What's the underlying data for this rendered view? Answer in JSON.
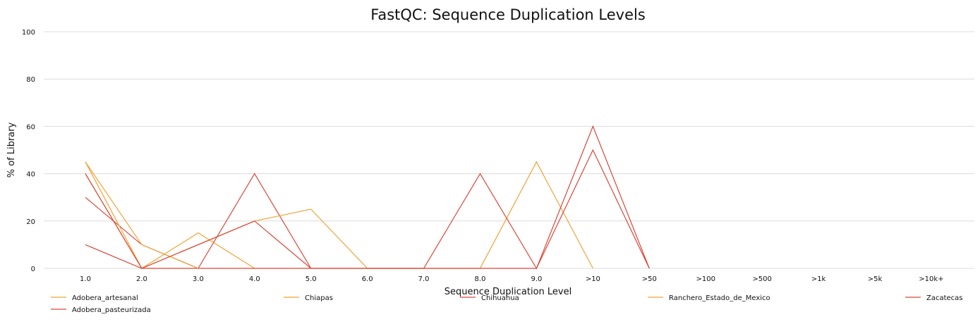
{
  "chart_data": {
    "type": "line",
    "title": "FastQC: Sequence Duplication Levels",
    "xlabel": "Sequence Duplication Level",
    "ylabel": "% of Library",
    "categories": [
      "1.0",
      "2.0",
      "3.0",
      "4.0",
      "5.0",
      "6.0",
      "7.0",
      "8.0",
      "9.0",
      ">10",
      ">50",
      ">100",
      ">500",
      ">1k",
      ">5k",
      ">10k+"
    ],
    "ylim": [
      0,
      100
    ],
    "yticks": [
      0,
      20,
      40,
      60,
      80,
      100
    ],
    "grid": true,
    "legend_position": "bottom",
    "series": [
      {
        "name": "Adobera_artesanal",
        "color": "#f0a336",
        "values": [
          40,
          0,
          15,
          0,
          null,
          null,
          null,
          null,
          null,
          null,
          null,
          null,
          null,
          null,
          null,
          null
        ]
      },
      {
        "name": "Adobera_pasteurizada",
        "color": "#d9473a",
        "values": [
          30,
          10,
          0,
          40,
          0,
          null,
          null,
          null,
          null,
          null,
          null,
          null,
          null,
          null,
          null,
          null
        ]
      },
      {
        "name": "Chiapas",
        "color": "#f0a336",
        "values": [
          45,
          0,
          null,
          20,
          25,
          0,
          null,
          0,
          45,
          0,
          null,
          null,
          null,
          null,
          null,
          null
        ]
      },
      {
        "name": "Chihuahua",
        "color": "#d9473a",
        "values": [
          10,
          0,
          null,
          null,
          null,
          null,
          0,
          40,
          0,
          50,
          0,
          null,
          null,
          null,
          null,
          null
        ]
      },
      {
        "name": "Ranchero_Estado_de_Mexico",
        "color": "#f0a336",
        "values": [
          45,
          10,
          0,
          null,
          null,
          null,
          null,
          null,
          null,
          null,
          null,
          null,
          null,
          null,
          null,
          null
        ]
      },
      {
        "name": "Zacatecas",
        "color": "#d9473a",
        "values": [
          40,
          0,
          null,
          20,
          0,
          null,
          null,
          null,
          0,
          60,
          0,
          null,
          null,
          null,
          null,
          null
        ]
      }
    ]
  }
}
